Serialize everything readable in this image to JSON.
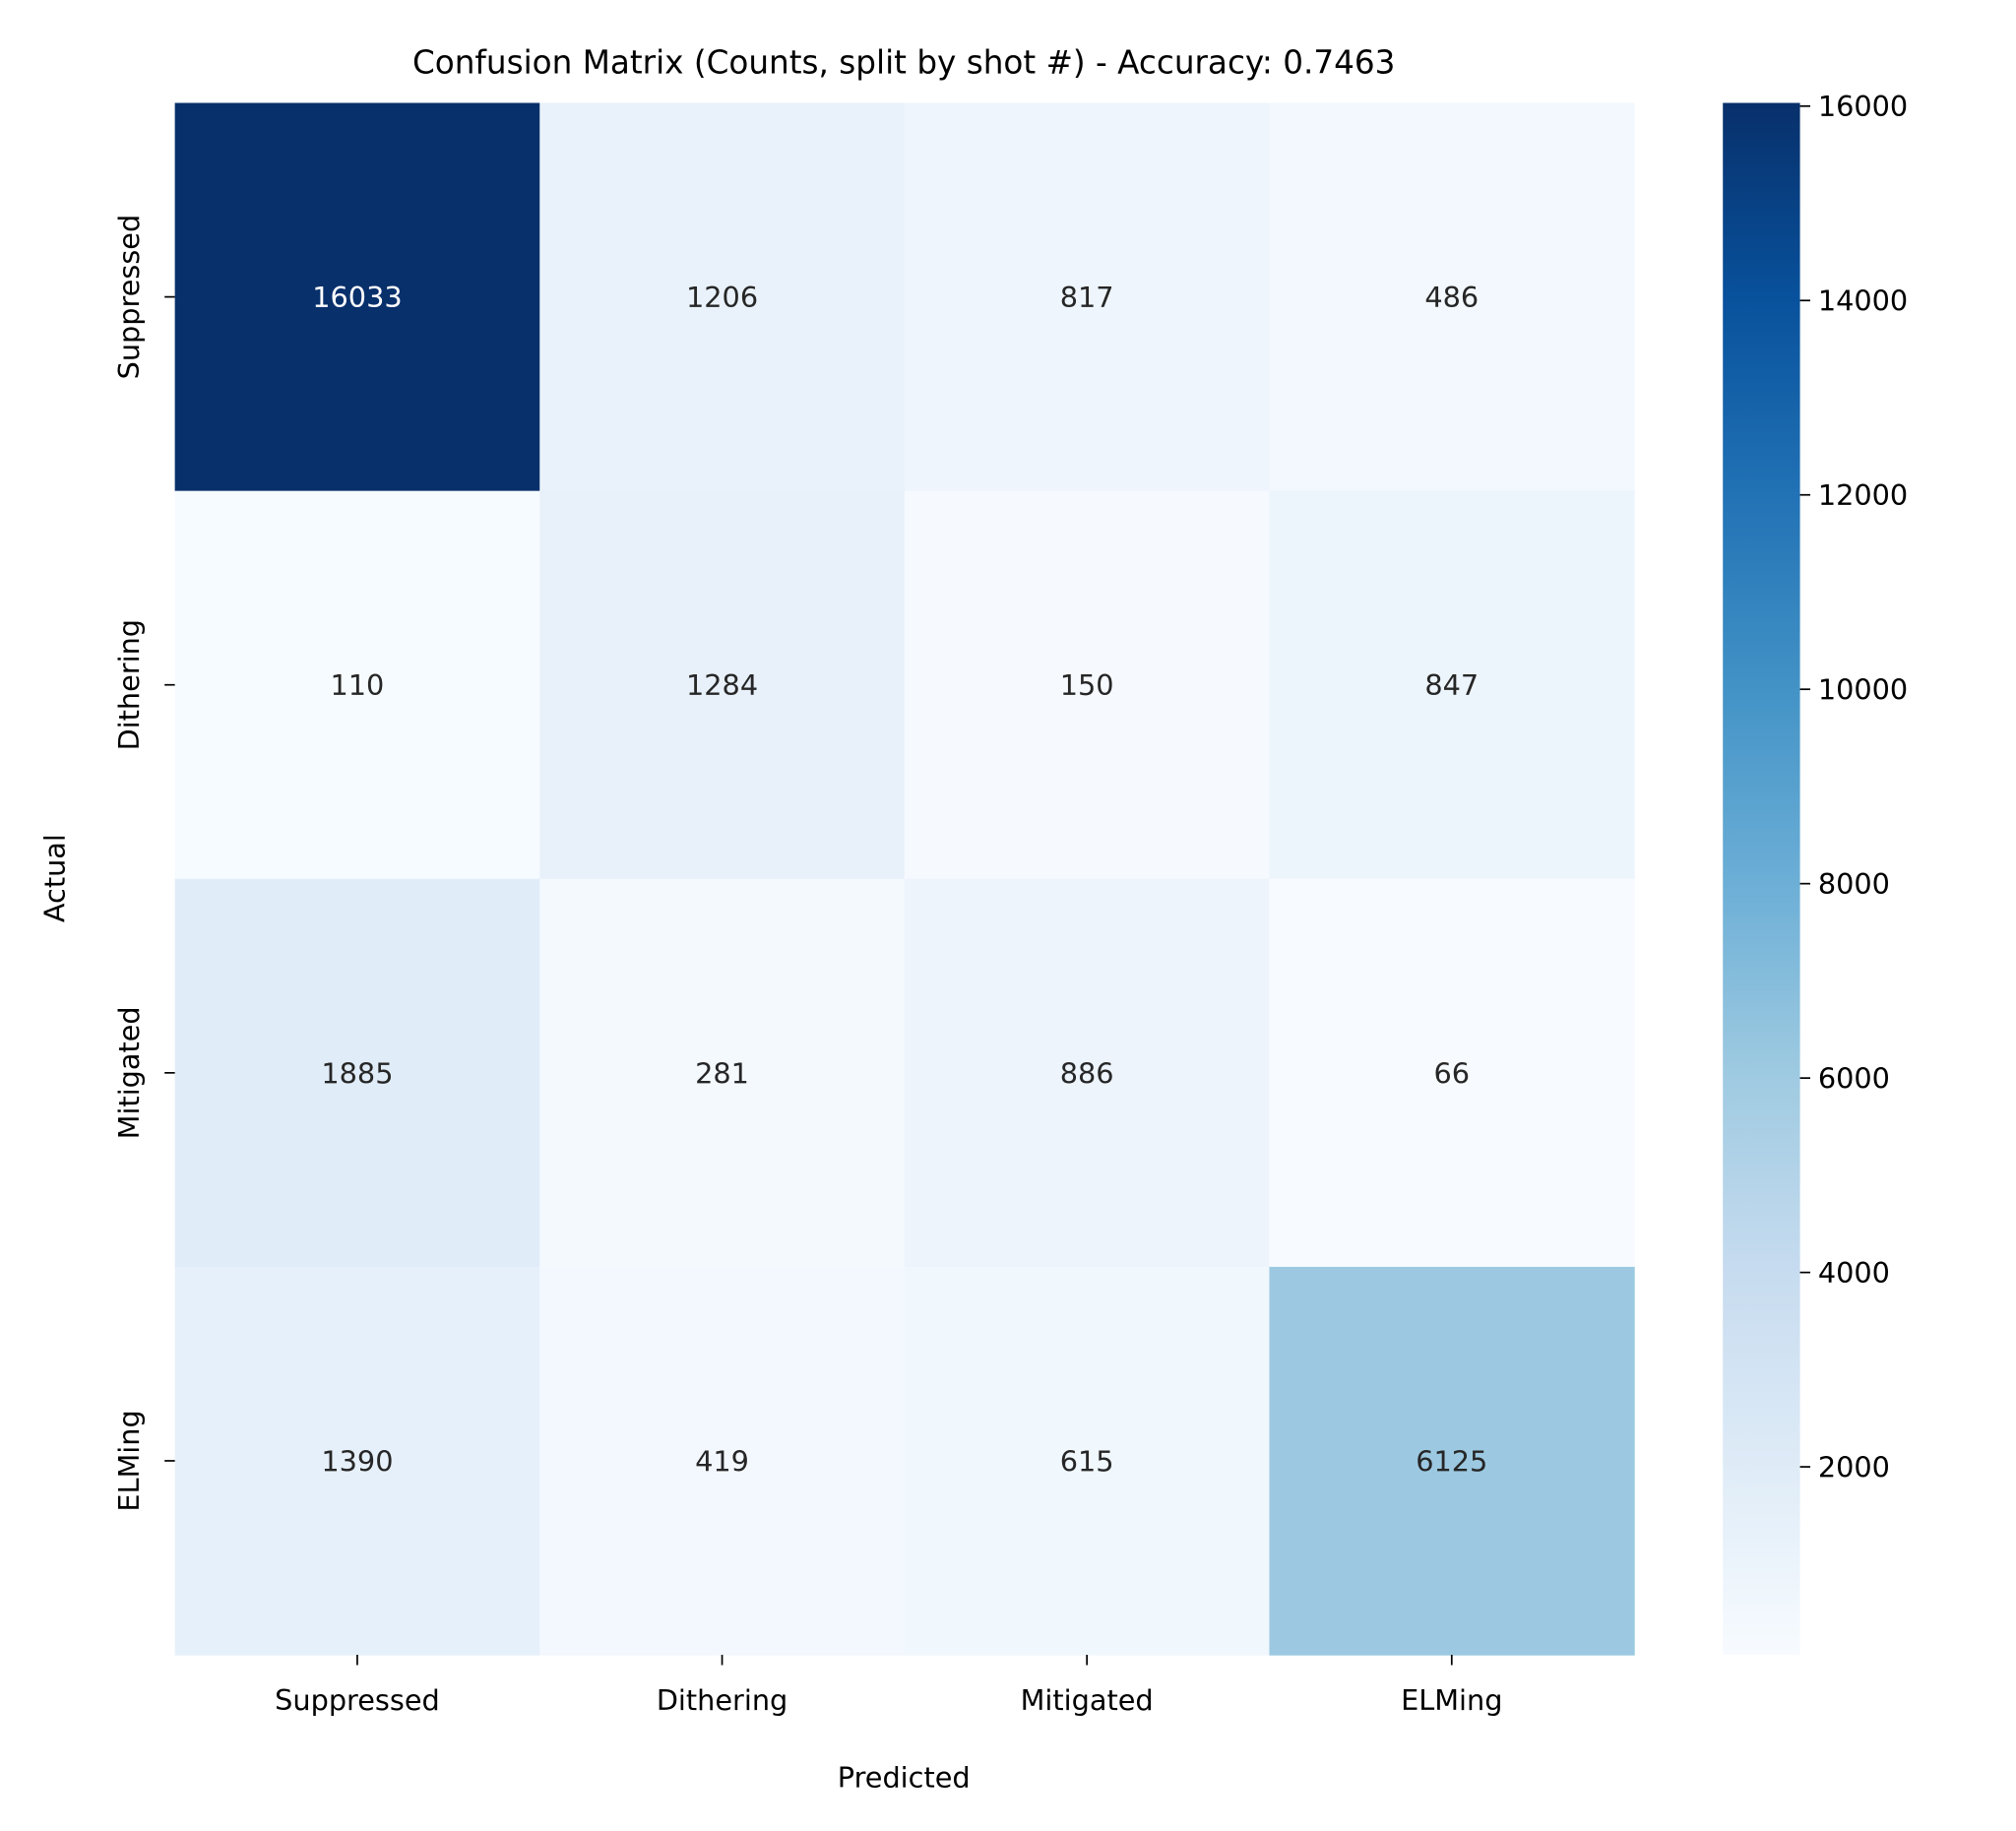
{
  "chart_data": {
    "type": "heatmap",
    "title": "Confusion Matrix (Counts, split by shot #) - Accuracy: 0.7463",
    "xlabel": "Predicted",
    "ylabel": "Actual",
    "x_categories": [
      "Suppressed",
      "Dithering",
      "Mitigated",
      "ELMing"
    ],
    "y_categories": [
      "Suppressed",
      "Dithering",
      "Mitigated",
      "ELMing"
    ],
    "values": [
      [
        16033,
        1206,
        817,
        486
      ],
      [
        110,
        1284,
        150,
        847
      ],
      [
        1885,
        281,
        886,
        66
      ],
      [
        1390,
        419,
        615,
        6125
      ]
    ],
    "colormap": "Blues",
    "colormap_stops": [
      "#f7fbff",
      "#deebf7",
      "#c6dbef",
      "#9ecae1",
      "#6baed6",
      "#4292c6",
      "#2171b5",
      "#08519c",
      "#08306b"
    ],
    "colorbar": {
      "range": [
        66,
        16033
      ],
      "ticks": [
        2000,
        4000,
        6000,
        8000,
        10000,
        12000,
        14000,
        16000
      ],
      "tick_labels": [
        "2000",
        "4000",
        "6000",
        "8000",
        "10000",
        "12000",
        "14000",
        "16000"
      ]
    },
    "grid": false
  }
}
